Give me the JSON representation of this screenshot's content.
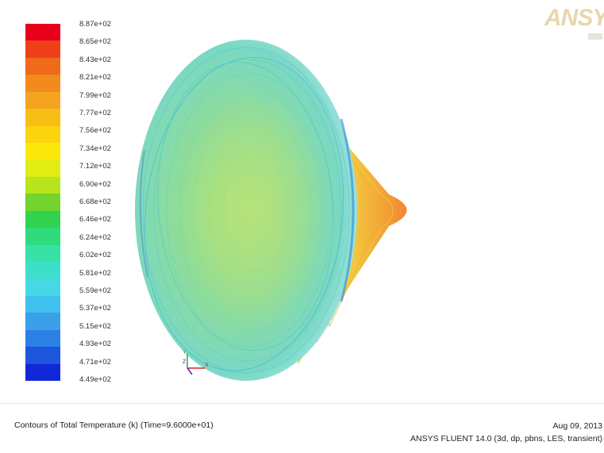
{
  "legend": {
    "ticks": [
      "8.87e+02",
      "8.65e+02",
      "8.43e+02",
      "8.21e+02",
      "7.99e+02",
      "7.77e+02",
      "7.56e+02",
      "7.34e+02",
      "7.12e+02",
      "6.90e+02",
      "6.68e+02",
      "6.46e+02",
      "6.24e+02",
      "6.02e+02",
      "5.81e+02",
      "5.59e+02",
      "5.37e+02",
      "5.15e+02",
      "4.93e+02",
      "4.71e+02",
      "4.49e+02"
    ],
    "colors": [
      "#e8001a",
      "#f0401a",
      "#f06a1c",
      "#f28a1e",
      "#f4a41e",
      "#f8be16",
      "#fbd40e",
      "#fbe80a",
      "#e0ec12",
      "#b8e41c",
      "#72d42c",
      "#30d250",
      "#2edc7e",
      "#36e2a6",
      "#3ce0c8",
      "#46d8e4",
      "#40c0ee",
      "#3aa0ea",
      "#2c80e4",
      "#1c56dc",
      "#1028d8"
    ]
  },
  "logo": {
    "text": "ANSYS"
  },
  "caption": "Contours of Total Temperature (k)  (Time=9.6000e+01)",
  "date": "Aug 09, 2013",
  "version": "ANSYS FLUENT 14.0 (3d, dp, pbns, LES, transient)",
  "axes": {
    "x": "X",
    "y": "Y",
    "z": "Z"
  },
  "colors": {
    "background": "#ffffff",
    "text": "#222222"
  }
}
